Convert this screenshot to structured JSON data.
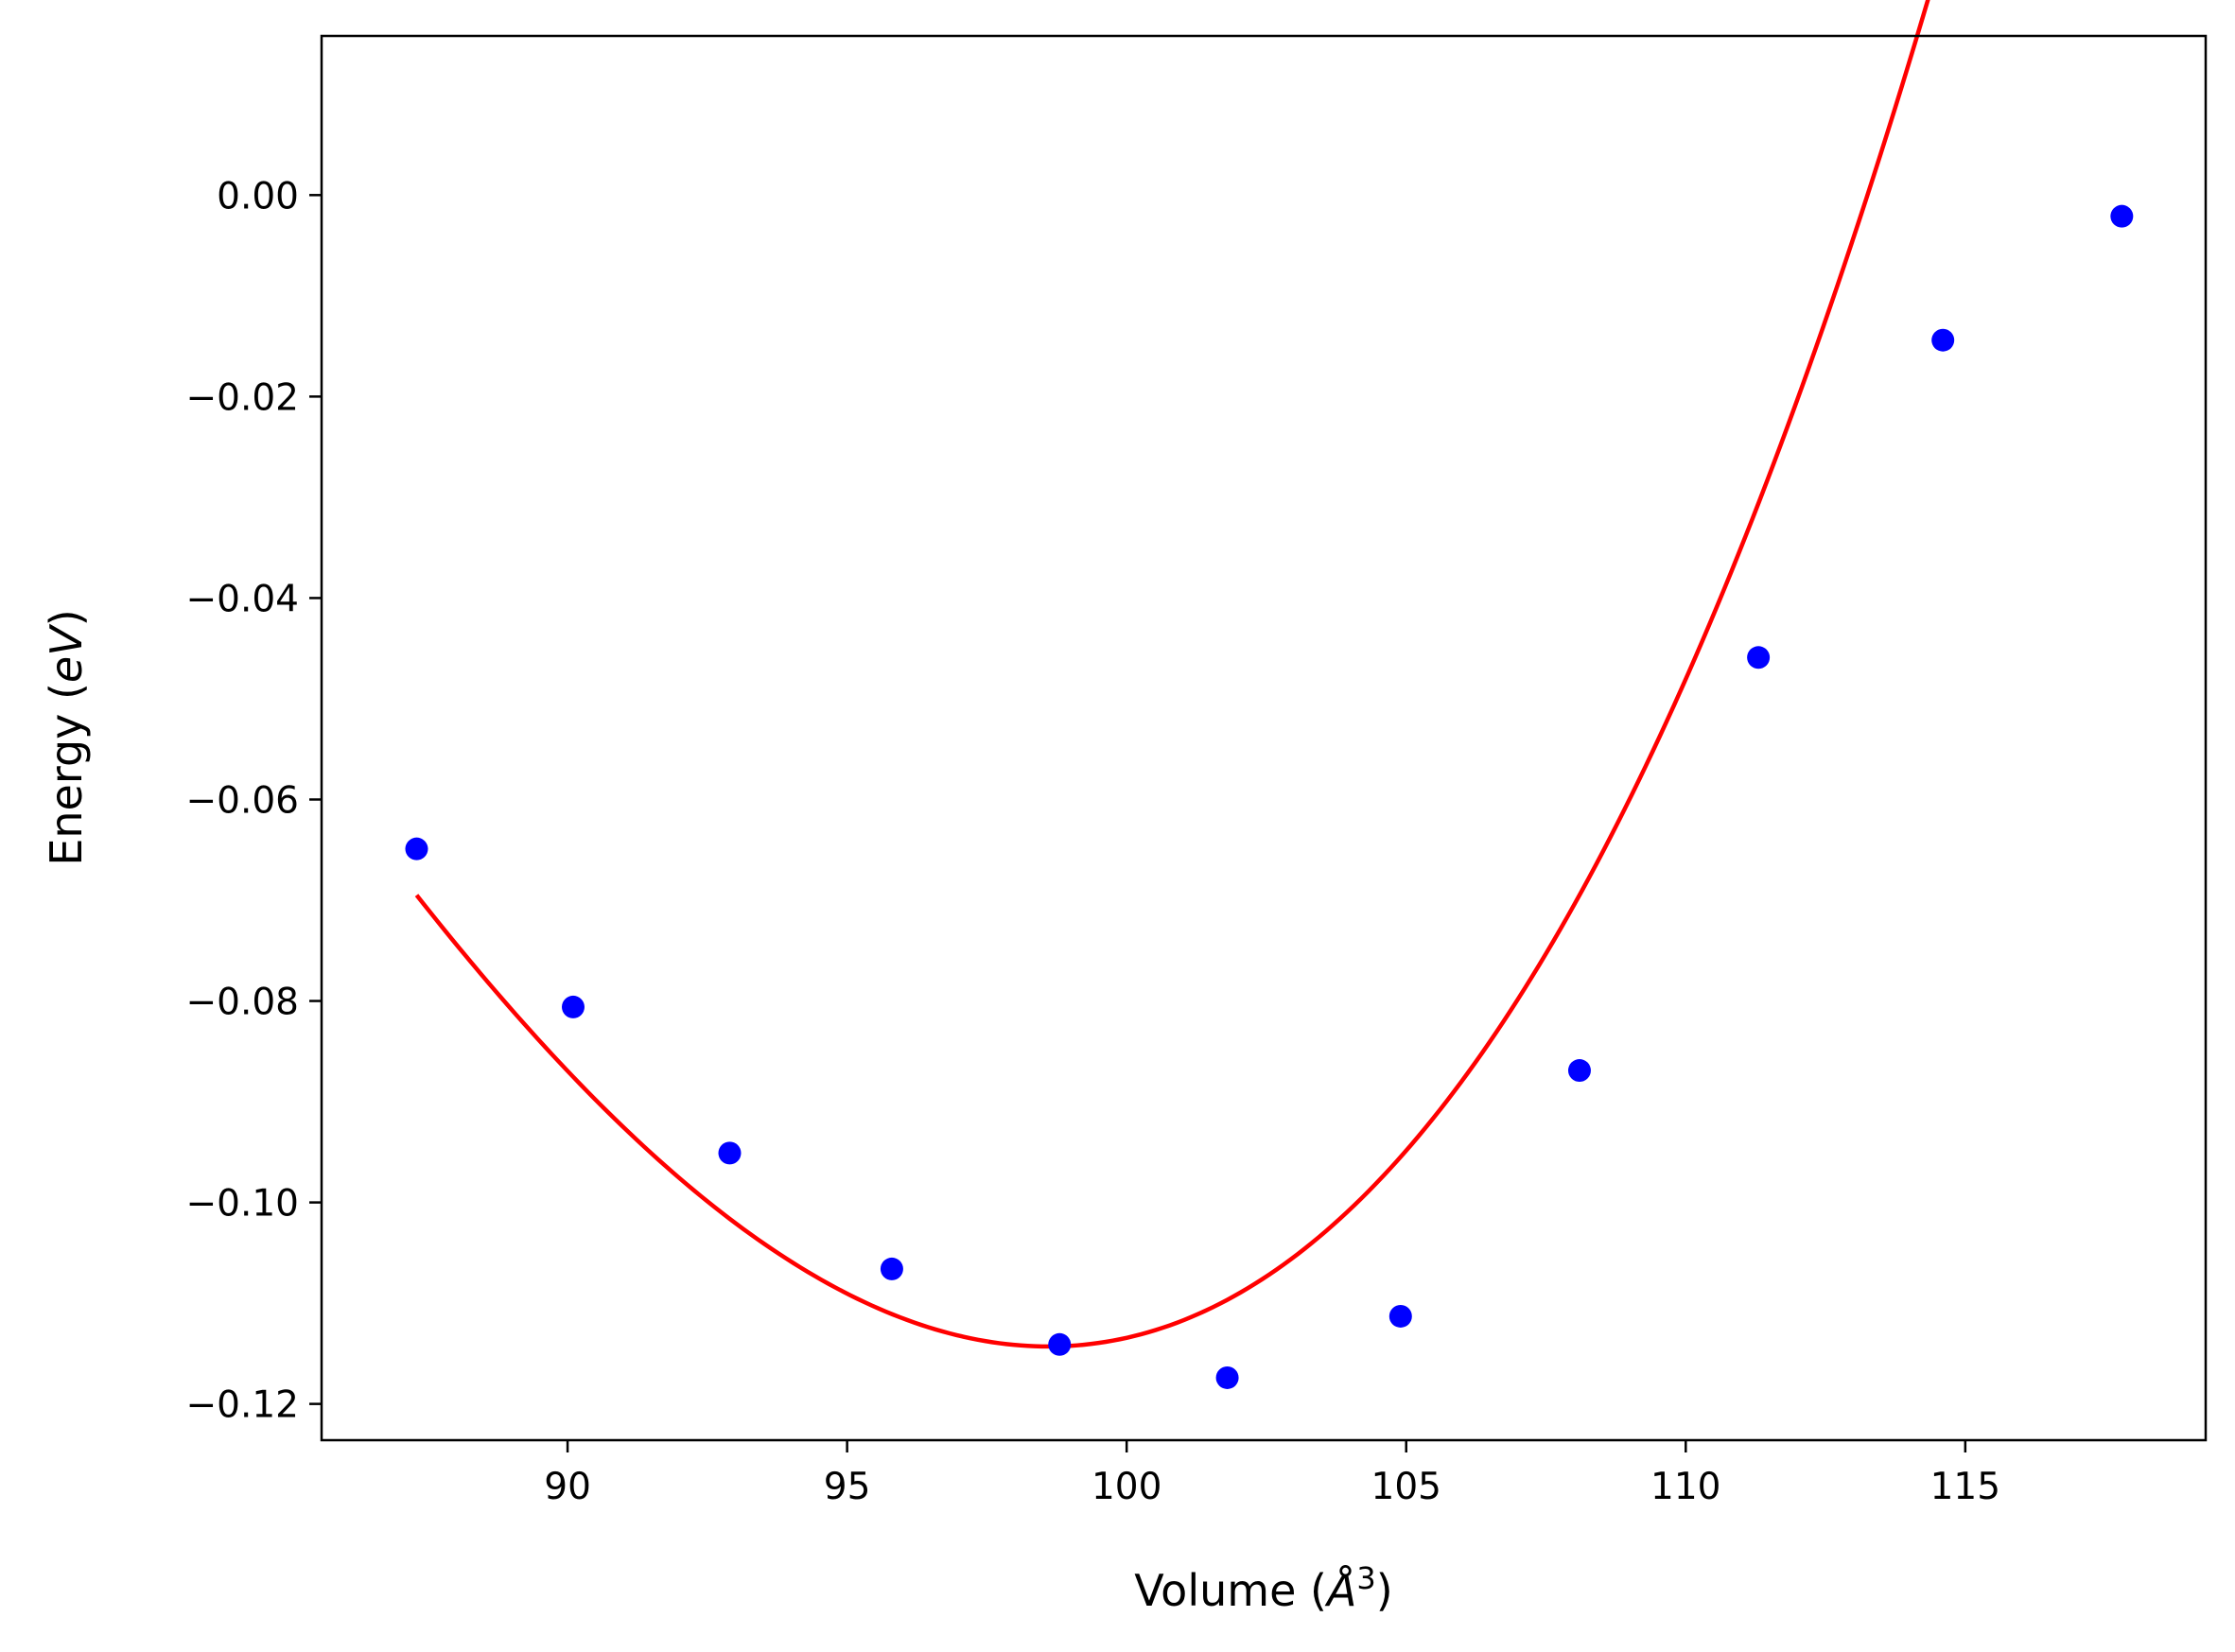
{
  "chart_data": {
    "type": "scatter",
    "title": "",
    "xlabel_parts": [
      "Volume (",
      "Å",
      "3",
      ")"
    ],
    "ylabel_parts": [
      "Energy (",
      "eV",
      ")"
    ],
    "xlim": [
      85.6,
      119.3
    ],
    "ylim": [
      -0.1236,
      0.0158
    ],
    "xticks": [
      90,
      95,
      100,
      105,
      110,
      115
    ],
    "xtick_labels": [
      "90",
      "95",
      "100",
      "105",
      "110",
      "115"
    ],
    "yticks": [
      0.0,
      -0.02,
      -0.04,
      -0.06,
      -0.08,
      -0.1,
      -0.12
    ],
    "ytick_labels": [
      "0.00",
      "−0.02",
      "−0.04",
      "−0.06",
      "−0.08",
      "−0.10",
      "−0.12"
    ],
    "grid": false,
    "series": [
      {
        "kind": "points",
        "color": "#0000ff",
        "x": [
          87.3,
          90.1,
          92.9,
          95.8,
          98.8,
          101.8,
          104.9,
          108.1,
          111.3,
          114.6,
          117.8
        ],
        "y": [
          -0.0649,
          -0.0806,
          -0.0951,
          -0.1066,
          -0.1141,
          -0.1174,
          -0.1113,
          -0.0869,
          -0.0459,
          -0.0144,
          -0.0021
        ]
      },
      {
        "kind": "fit-curve",
        "color": "#ff0000",
        "x_range": [
          87.3,
          117.8
        ],
        "vertex_x": 98.6,
        "vertex_y": -0.1143,
        "curvature": 0.00043,
        "cubic": 7e-06
      }
    ]
  }
}
